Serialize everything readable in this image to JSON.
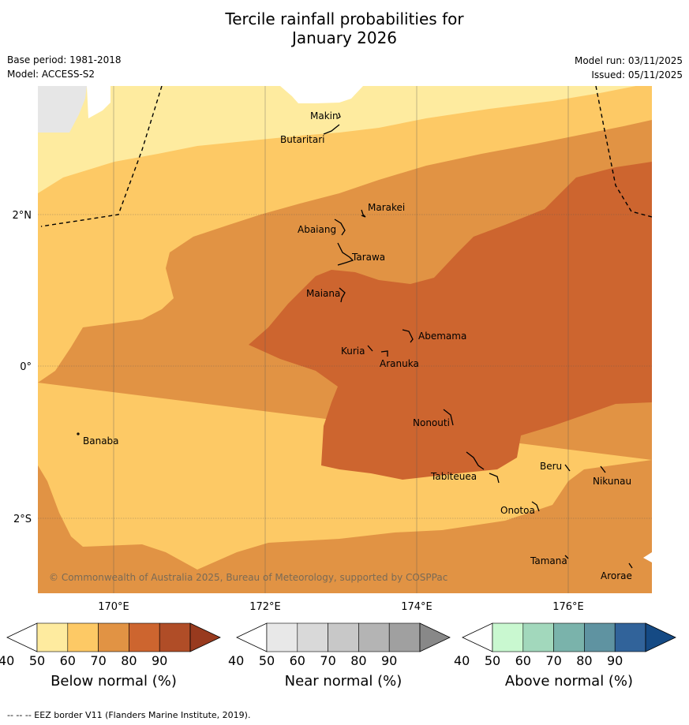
{
  "title_line1": "Tercile rainfall probabilities for",
  "title_line2": "January 2026",
  "meta": {
    "base_period": "Base period: 1981-2018",
    "model": "Model: ACCESS-S2",
    "model_run": "Model run: 03/11/2025",
    "issued": "Issued: 05/11/2025"
  },
  "map": {
    "copyright": "© Commonwealth of Australia 2025, Bureau of Meteorology, supported by COSPPac",
    "lon_labels": [
      "170°E",
      "172°E",
      "174°E",
      "176°E"
    ],
    "lat_labels": [
      "2°N",
      "0°",
      "2°S"
    ],
    "islands": [
      "Makin",
      "Butaritari",
      "Marakei",
      "Abaiang",
      "Tarawa",
      "Maiana",
      "Abemama",
      "Kuria",
      "Aranuka",
      "Banaba",
      "Nonouti",
      "Beru",
      "Tabiteuea",
      "Nikunau",
      "Onotoa",
      "Tamana",
      "Arorae"
    ],
    "colors": {
      "land_mask": "#e6e6e6",
      "below_50": "#feeb9f",
      "below_60": "#fdc965",
      "below_70": "#e19344",
      "below_80": "#cd652f",
      "grid": "#555555"
    }
  },
  "colorbars": [
    {
      "title": "Below normal (%)",
      "ticks": [
        "40",
        "50",
        "60",
        "70",
        "80",
        "90"
      ],
      "colors": [
        "#ffffff",
        "#feeb9f",
        "#fdc965",
        "#e19344",
        "#cd652f",
        "#b04d27",
        "#983a1e"
      ]
    },
    {
      "title": "Near normal (%)",
      "ticks": [
        "40",
        "50",
        "60",
        "70",
        "80",
        "90"
      ],
      "colors": [
        "#ffffff",
        "#e8e8e8",
        "#d9d9d9",
        "#c8c8c8",
        "#b4b4b4",
        "#a0a0a0",
        "#888888"
      ]
    },
    {
      "title": "Above normal (%)",
      "ticks": [
        "40",
        "50",
        "60",
        "70",
        "80",
        "90"
      ],
      "colors": [
        "#ffffff",
        "#c9f8d0",
        "#a2d8bc",
        "#7ab3ab",
        "#5f93a1",
        "#31639a",
        "#154a84"
      ]
    }
  ],
  "footer": "--  --  -- EEZ border V11 (Flanders Marine Institute, 2019)."
}
